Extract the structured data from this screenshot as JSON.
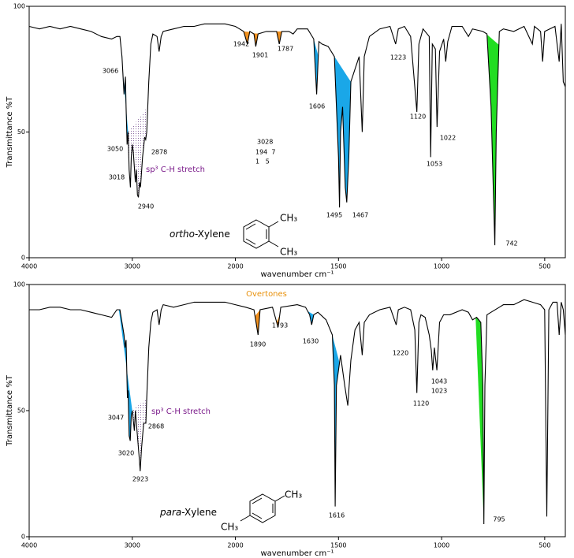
{
  "chart_data": [
    {
      "type": "line",
      "color": "#000000",
      "x": [
        4000,
        3900,
        3800,
        3700,
        3600,
        3500,
        3400,
        3300,
        3200,
        3150,
        3120,
        3100,
        3080,
        3066,
        3060,
        3050,
        3040,
        3030,
        3018,
        3010,
        3000,
        2990,
        2970,
        2960,
        2950,
        2940,
        2930,
        2920,
        2900,
        2880,
        2870,
        2860,
        2840,
        2820,
        2800,
        2760,
        2740,
        2720,
        2700,
        2600,
        2500,
        2400,
        2300,
        2200,
        2100,
        2000,
        1980,
        1960,
        1942,
        1930,
        1910,
        1901,
        1890,
        1850,
        1800,
        1787,
        1775,
        1740,
        1720,
        1700,
        1650,
        1620,
        1606,
        1595,
        1580,
        1550,
        1520,
        1500,
        1495,
        1490,
        1480,
        1467,
        1460,
        1450,
        1440,
        1420,
        1400,
        1385,
        1375,
        1350,
        1300,
        1250,
        1223,
        1210,
        1180,
        1150,
        1120,
        1110,
        1090,
        1060,
        1053,
        1045,
        1030,
        1022,
        1010,
        990,
        980,
        970,
        950,
        900,
        870,
        850,
        800,
        780,
        760,
        742,
        735,
        720,
        700,
        650,
        600,
        560,
        550,
        520,
        510,
        500,
        450,
        430,
        420,
        410,
        400
      ],
      "values": [
        92,
        91,
        92,
        91,
        92,
        91,
        90,
        88,
        87,
        88,
        88,
        80,
        65,
        72,
        60,
        45,
        50,
        35,
        28,
        40,
        45,
        42,
        30,
        35,
        25,
        24,
        30,
        28,
        40,
        48,
        47,
        50,
        70,
        85,
        89,
        88,
        82,
        88,
        90,
        91,
        92,
        92,
        93,
        93,
        93,
        92,
        91,
        90,
        85,
        90,
        89,
        84,
        89,
        90,
        90,
        85,
        90,
        90,
        89,
        91,
        91,
        87,
        65,
        86,
        85,
        84,
        80,
        40,
        20,
        50,
        60,
        28,
        22,
        40,
        70,
        75,
        80,
        50,
        80,
        88,
        91,
        92,
        85,
        91,
        92,
        88,
        58,
        85,
        91,
        88,
        40,
        85,
        83,
        52,
        82,
        87,
        78,
        86,
        92,
        92,
        88,
        91,
        90,
        89,
        60,
        5,
        50,
        90,
        91,
        90,
        92,
        85,
        92,
        90,
        78,
        90,
        92,
        78,
        93,
        70,
        68
      ],
      "xlim": [
        4000,
        400
      ],
      "ylim": [
        0,
        100
      ],
      "xticks": [
        4000,
        3000,
        2000,
        1500,
        1000,
        500
      ],
      "yticks": [
        0,
        50,
        100
      ],
      "xlabel": "wavenumber cm⁻¹",
      "ylabel": "Transmittance %T",
      "peaks": [
        3066,
        3050,
        3018,
        2940,
        2878,
        1942,
        1901,
        1787,
        1606,
        1495,
        1467,
        1223,
        1120,
        1053,
        1022,
        742
      ],
      "fills": [
        {
          "from": 3120,
          "to": 3040,
          "color": "#1aa7e8"
        },
        {
          "from": 3040,
          "to": 2850,
          "pattern": "dots"
        },
        {
          "from": 1960,
          "to": 1925,
          "color": "#f0901e"
        },
        {
          "from": 1915,
          "to": 1885,
          "color": "#f0901e"
        },
        {
          "from": 1800,
          "to": 1775,
          "color": "#f0901e"
        },
        {
          "from": 1620,
          "to": 1598,
          "color": "#1aa7e8"
        },
        {
          "from": 1525,
          "to": 1440,
          "color": "#1aa7e8"
        },
        {
          "from": 790,
          "to": 722,
          "color": "#22dd22"
        }
      ],
      "annotation": "sp³ C-H stretch",
      "notes": [
        "3028",
        "194  7",
        "1   5"
      ],
      "compound": {
        "prefix": "ortho",
        "suffix": "-Xylene"
      },
      "substituents": [
        "CH₃",
        "CH₃"
      ]
    },
    {
      "type": "line",
      "color": "#000000",
      "x": [
        4000,
        3900,
        3800,
        3700,
        3600,
        3500,
        3400,
        3300,
        3200,
        3150,
        3120,
        3100,
        3080,
        3070,
        3060,
        3047,
        3040,
        3030,
        3020,
        3010,
        3000,
        2980,
        2970,
        2950,
        2930,
        2923,
        2910,
        2890,
        2868,
        2860,
        2840,
        2820,
        2800,
        2760,
        2740,
        2720,
        2700,
        2600,
        2500,
        2400,
        2300,
        2200,
        2100,
        2000,
        1950,
        1910,
        1890,
        1880,
        1820,
        1793,
        1780,
        1700,
        1660,
        1640,
        1630,
        1620,
        1600,
        1560,
        1530,
        1520,
        1516,
        1510,
        1490,
        1470,
        1455,
        1440,
        1420,
        1400,
        1385,
        1375,
        1350,
        1300,
        1250,
        1220,
        1210,
        1180,
        1150,
        1130,
        1120,
        1110,
        1100,
        1080,
        1060,
        1050,
        1043,
        1035,
        1023,
        1010,
        990,
        960,
        900,
        870,
        850,
        830,
        810,
        800,
        795,
        790,
        780,
        760,
        720,
        700,
        650,
        600,
        560,
        520,
        500,
        490,
        480,
        460,
        440,
        430,
        420,
        410,
        400
      ],
      "values": [
        90,
        90,
        91,
        91,
        90,
        90,
        89,
        88,
        87,
        90,
        90,
        85,
        80,
        75,
        78,
        55,
        58,
        40,
        38,
        48,
        50,
        42,
        50,
        40,
        30,
        26,
        35,
        45,
        45,
        55,
        75,
        85,
        89,
        90,
        84,
        90,
        92,
        91,
        92,
        93,
        93,
        93,
        93,
        92,
        91,
        90,
        80,
        90,
        91,
        83,
        91,
        92,
        91,
        88,
        84,
        88,
        89,
        86,
        80,
        60,
        12,
        60,
        72,
        60,
        52,
        70,
        82,
        85,
        72,
        85,
        88,
        90,
        91,
        84,
        90,
        91,
        90,
        82,
        57,
        85,
        88,
        87,
        80,
        74,
        66,
        75,
        66,
        85,
        88,
        88,
        90,
        89,
        86,
        87,
        85,
        60,
        5,
        60,
        88,
        89,
        91,
        92,
        92,
        94,
        93,
        92,
        90,
        8,
        90,
        93,
        93,
        80,
        93,
        90,
        80
      ],
      "xlim": [
        4000,
        400
      ],
      "ylim": [
        0,
        100
      ],
      "xticks": [
        4000,
        3000,
        2000,
        1500,
        1000,
        500
      ],
      "yticks": [
        0,
        50,
        100
      ],
      "xlabel": "wavenumber cm⁻¹",
      "ylabel": "Transmittance %T",
      "peaks": [
        3047,
        3020,
        2923,
        2868,
        1890,
        1793,
        1630,
        1616,
        1220,
        1120,
        1043,
        1023,
        795
      ],
      "fills": [
        {
          "from": 3130,
          "to": 3000,
          "color": "#1aa7e8"
        },
        {
          "from": 3000,
          "to": 2860,
          "pattern": "dots"
        },
        {
          "from": 1905,
          "to": 1880,
          "color": "#f0901e"
        },
        {
          "from": 1800,
          "to": 1785,
          "color": "#f0901e"
        },
        {
          "from": 1650,
          "to": 1620,
          "color": "#1aa7e8"
        },
        {
          "from": 1530,
          "to": 1495,
          "color": "#1aa7e8"
        },
        {
          "from": 835,
          "to": 795,
          "color": "#22dd22"
        }
      ],
      "annotation": "sp³ C-H stretch",
      "header": "Overtones",
      "compound": {
        "prefix": "para",
        "suffix": "-Xylene"
      },
      "substituents": [
        "CH₃",
        "CH₃"
      ]
    }
  ]
}
